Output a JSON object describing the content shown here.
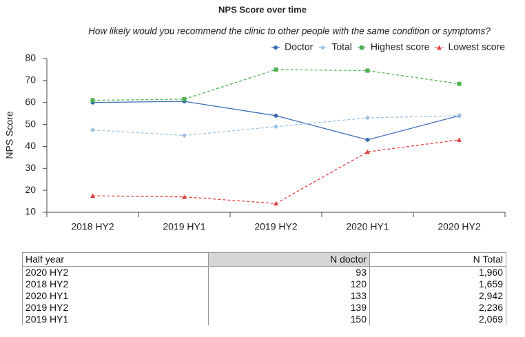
{
  "chart_data": {
    "type": "line",
    "title": "NPS Score over time",
    "subtitle": "How likely would you recommend the clinic to other people with the same condition or symptoms?",
    "y_label": "NPS Score",
    "categories": [
      "2018 HY2",
      "2019 HY1",
      "2019 HY2",
      "2020 HY1",
      "2020 HY2"
    ],
    "series": [
      {
        "name": "Doctor",
        "color": "#3a6db4",
        "dash": false,
        "marker": "circle",
        "values": [
          60,
          60.5,
          54,
          43,
          54
        ]
      },
      {
        "name": "Total",
        "color": "#9cc2e5",
        "dash": true,
        "marker": "diamond",
        "values": [
          47.5,
          45,
          49,
          53,
          54
        ]
      },
      {
        "name": "Highest score",
        "color": "#4caf50",
        "dash": true,
        "marker": "square",
        "values": [
          61,
          61.5,
          75,
          74.5,
          68.5
        ]
      },
      {
        "name": "Lowest score",
        "color": "#e23b3b",
        "dash": true,
        "marker": "triangle",
        "values": [
          17.5,
          17,
          14,
          37.5,
          43
        ]
      }
    ],
    "ylim": [
      10,
      80
    ],
    "yticks": [
      10,
      20,
      30,
      40,
      50,
      60,
      70,
      80
    ],
    "grid": false,
    "legend": "top-right"
  },
  "table": {
    "columns": [
      "Half year",
      "N doctor",
      "N Total"
    ],
    "rows": [
      [
        "2020 HY2",
        "93",
        "1,960"
      ],
      [
        "2018 HY2",
        "120",
        "1,659"
      ],
      [
        "2020 HY1",
        "133",
        "2,942"
      ],
      [
        "2019 HY2",
        "139",
        "2,236"
      ],
      [
        "2019 HY1",
        "150",
        "2,069"
      ]
    ]
  }
}
